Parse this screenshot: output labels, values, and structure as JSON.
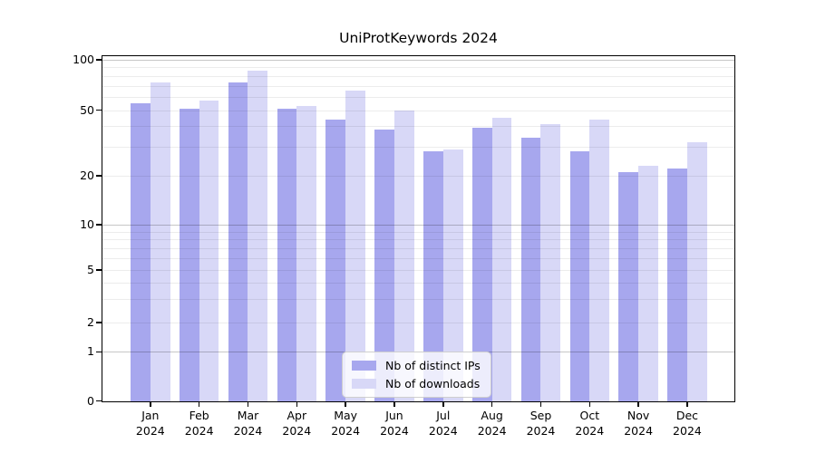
{
  "chart": {
    "title": "UniProtKeywords 2024",
    "colors": {
      "ips": "#a7a7ee",
      "downloads": "#d8d8f7",
      "axis": "#000000",
      "grid_minor": "#ececec",
      "grid_major": "#c8c8c8"
    },
    "legend": {
      "ips_label": "Nb of distinct IPs",
      "downloads_label": "Nb of downloads"
    }
  },
  "chart_data": {
    "type": "bar",
    "title": "UniProtKeywords 2024",
    "categories": [
      "Jan 2024",
      "Feb 2024",
      "Mar 2024",
      "Apr 2024",
      "May 2024",
      "Jun 2024",
      "Jul 2024",
      "Aug 2024",
      "Sep 2024",
      "Oct 2024",
      "Nov 2024",
      "Dec 2024"
    ],
    "months": [
      "Jan",
      "Feb",
      "Mar",
      "Apr",
      "May",
      "Jun",
      "Jul",
      "Aug",
      "Sep",
      "Oct",
      "Nov",
      "Dec"
    ],
    "year": "2024",
    "series": [
      {
        "name": "Nb of distinct IPs",
        "color": "#a7a7ee",
        "values": [
          55,
          51,
          73,
          51,
          44,
          38,
          28,
          39,
          34,
          28,
          21,
          22
        ]
      },
      {
        "name": "Nb of downloads",
        "color": "#d8d8f7",
        "values": [
          73,
          57,
          86,
          53,
          65,
          50,
          29,
          45,
          41,
          44,
          23,
          32
        ]
      }
    ],
    "xlabel": "",
    "ylabel": "",
    "yscale": "log-like",
    "ylim": [
      0,
      100
    ],
    "yticks": [
      {
        "label": "100",
        "value": 100
      },
      {
        "label": "50",
        "value": 50
      },
      {
        "label": "20",
        "value": 20
      },
      {
        "label": "10",
        "value": 10
      },
      {
        "label": "5",
        "value": 5
      },
      {
        "label": "2",
        "value": 2
      },
      {
        "label": "1",
        "value": 1
      },
      {
        "label": "0",
        "value": 0
      }
    ],
    "grid": {
      "on": true,
      "minor_values": [
        2,
        3,
        4,
        5,
        6,
        7,
        8,
        9,
        20,
        30,
        40,
        50,
        60,
        70,
        80,
        90
      ],
      "major_values": [
        1,
        10,
        100
      ]
    },
    "legend_position": "inside-bottom-center"
  }
}
